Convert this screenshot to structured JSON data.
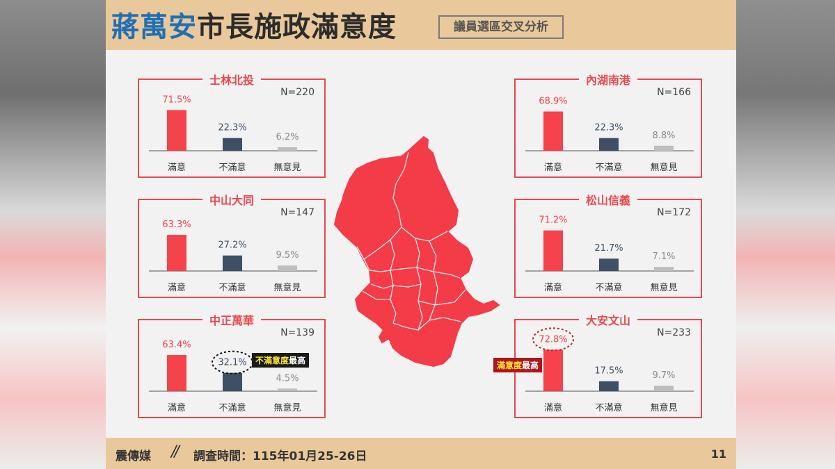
{
  "header": {
    "title_blue": "蔣萬安",
    "title_dark": "市長施政滿意度",
    "subtitle": "議員選區交叉分析"
  },
  "footer": {
    "brand": "震傳媒",
    "survey_time": "調查時間：115年01月25-26日",
    "page": "11"
  },
  "colors": {
    "satisfied": "#f5424b",
    "unsatisfied": "#3e4f66",
    "no_opinion": "#bdbdbd",
    "accent": "#e8484f"
  },
  "chart_data": [
    {
      "type": "bar",
      "title": "士林北投",
      "n": "N=220",
      "categories": [
        "滿意",
        "不滿意",
        "無意見"
      ],
      "values": [
        71.5,
        22.3,
        6.2
      ],
      "labels": [
        "71.5%",
        "22.3%",
        "6.2%"
      ],
      "ylim": [
        0,
        100
      ]
    },
    {
      "type": "bar",
      "title": "中山大同",
      "n": "N=147",
      "categories": [
        "滿意",
        "不滿意",
        "無意見"
      ],
      "values": [
        63.3,
        27.2,
        9.5
      ],
      "labels": [
        "63.3%",
        "27.2%",
        "9.5%"
      ],
      "ylim": [
        0,
        100
      ]
    },
    {
      "type": "bar",
      "title": "中正萬華",
      "n": "N=139",
      "categories": [
        "滿意",
        "不滿意",
        "無意見"
      ],
      "values": [
        63.4,
        32.1,
        4.5
      ],
      "labels": [
        "63.4%",
        "32.1%",
        "4.5%"
      ],
      "ylim": [
        0,
        100
      ],
      "annotation": {
        "target": "不滿意",
        "highlight": "不滿意度",
        "rest": "最高"
      }
    },
    {
      "type": "bar",
      "title": "內湖南港",
      "n": "N=166",
      "categories": [
        "滿意",
        "不滿意",
        "無意見"
      ],
      "values": [
        68.9,
        22.3,
        8.8
      ],
      "labels": [
        "68.9%",
        "22.3%",
        "8.8%"
      ],
      "ylim": [
        0,
        100
      ]
    },
    {
      "type": "bar",
      "title": "松山信義",
      "n": "N=172",
      "categories": [
        "滿意",
        "不滿意",
        "無意見"
      ],
      "values": [
        71.2,
        21.7,
        7.1
      ],
      "labels": [
        "71.2%",
        "21.7%",
        "7.1%"
      ],
      "ylim": [
        0,
        100
      ]
    },
    {
      "type": "bar",
      "title": "大安文山",
      "n": "N=233",
      "categories": [
        "滿意",
        "不滿意",
        "無意見"
      ],
      "values": [
        72.8,
        17.5,
        9.7
      ],
      "labels": [
        "72.8%",
        "17.5%",
        "9.7%"
      ],
      "ylim": [
        0,
        100
      ],
      "annotation": {
        "target": "滿意",
        "highlight": "滿意度",
        "rest": "最高"
      }
    }
  ]
}
